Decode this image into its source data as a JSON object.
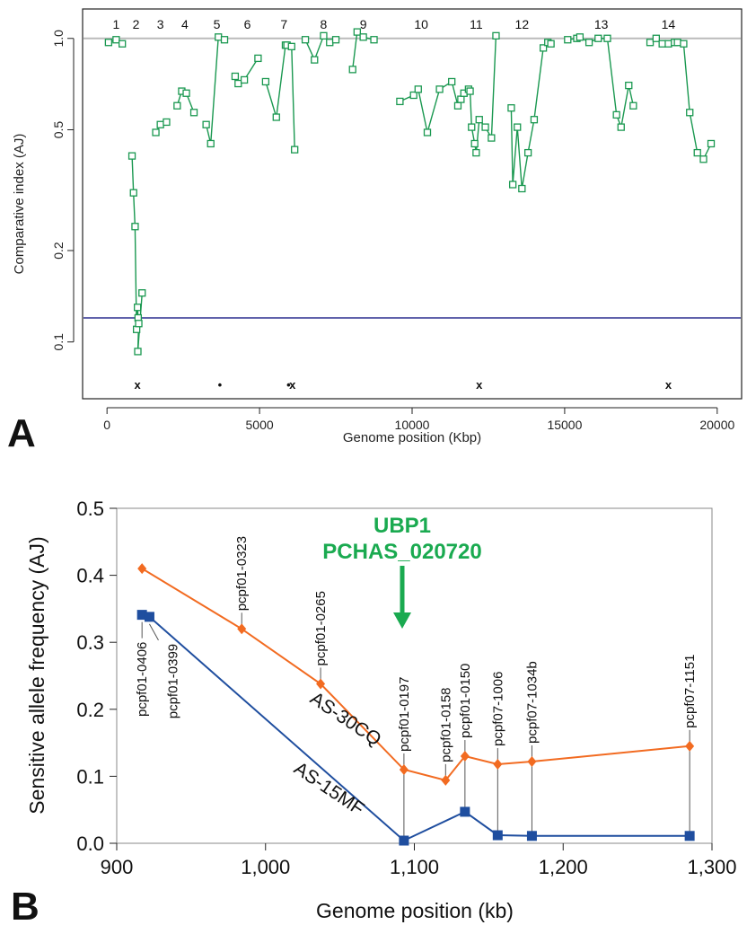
{
  "panel_a": {
    "letter": "A",
    "chart_data": {
      "type": "line",
      "xlabel": "Genome position (Kbp)",
      "ylabel": "Comparative index (AJ)",
      "xlim": [
        -800,
        20800
      ],
      "ylim": [
        0.065,
        1.25
      ],
      "y_scale": "log",
      "x_ticks": [
        0,
        5000,
        10000,
        15000,
        20000
      ],
      "x_tick_labels": [
        "0",
        "5000",
        "10000",
        "15000",
        "20000"
      ],
      "y_ticks": [
        0.1,
        0.2,
        0.5,
        1.0
      ],
      "y_tick_labels": [
        "0.1",
        "0.2",
        "0.5",
        "1.0"
      ],
      "reference_lines": [
        {
          "y": 1.0,
          "color": "#bbbbbb"
        },
        {
          "y": 0.12,
          "color": "#2b2f8f"
        }
      ],
      "chromosomes": [
        {
          "label": "1",
          "x": 300
        },
        {
          "label": "2",
          "x": 950
        },
        {
          "label": "3",
          "x": 1750
        },
        {
          "label": "4",
          "x": 2550
        },
        {
          "label": "5",
          "x": 3600
        },
        {
          "label": "6",
          "x": 4600
        },
        {
          "label": "7",
          "x": 5800
        },
        {
          "label": "8",
          "x": 7100
        },
        {
          "label": "9",
          "x": 8400
        },
        {
          "label": "10",
          "x": 10300
        },
        {
          "label": "11",
          "x": 12100
        },
        {
          "label": "12",
          "x": 13600
        },
        {
          "label": "13",
          "x": 16200
        },
        {
          "label": "14",
          "x": 18400
        }
      ],
      "markers": [
        {
          "symbol": "x",
          "x": 1000
        },
        {
          "symbol": "•",
          "x": 3700
        },
        {
          "symbol": "•",
          "x": 5950
        },
        {
          "symbol": "x",
          "x": 6080
        },
        {
          "symbol": "x",
          "x": 12200
        },
        {
          "symbol": "x",
          "x": 18400
        }
      ],
      "series": [
        {
          "color": "#1a9850",
          "points": [
            [
              50,
              0.97
            ],
            [
              300,
              0.99
            ],
            [
              500,
              0.96
            ]
          ]
        },
        {
          "color": "#1a9850",
          "points": [
            [
              820,
              0.41
            ],
            [
              870,
              0.31
            ],
            [
              920,
              0.24
            ],
            [
              970,
              0.11
            ],
            [
              1000,
              0.13
            ],
            [
              1020,
              0.12
            ],
            [
              1040,
              0.115
            ],
            [
              1010,
              0.093
            ],
            [
              1150,
              0.145
            ]
          ]
        },
        {
          "color": "#1a9850",
          "points": [
            [
              1600,
              0.49
            ],
            [
              1750,
              0.52
            ],
            [
              1950,
              0.53
            ]
          ]
        },
        {
          "color": "#1a9850",
          "points": [
            [
              2300,
              0.6
            ],
            [
              2450,
              0.67
            ],
            [
              2600,
              0.66
            ],
            [
              2850,
              0.57
            ]
          ]
        },
        {
          "color": "#1a9850",
          "points": [
            [
              3250,
              0.52
            ],
            [
              3400,
              0.45
            ],
            [
              3650,
              1.01
            ],
            [
              3850,
              0.99
            ]
          ]
        },
        {
          "color": "#1a9850",
          "points": [
            [
              4200,
              0.75
            ],
            [
              4300,
              0.71
            ],
            [
              4500,
              0.73
            ],
            [
              4950,
              0.86
            ]
          ]
        },
        {
          "color": "#1a9850",
          "points": [
            [
              5200,
              0.72
            ],
            [
              5550,
              0.55
            ],
            [
              5850,
              0.95
            ],
            [
              5900,
              0.95
            ],
            [
              6050,
              0.94
            ],
            [
              6150,
              0.43
            ]
          ]
        },
        {
          "color": "#1a9850",
          "points": [
            [
              6500,
              0.99
            ],
            [
              6800,
              0.85
            ],
            [
              7100,
              1.02
            ],
            [
              7300,
              0.97
            ],
            [
              7500,
              0.99
            ]
          ]
        },
        {
          "color": "#1a9850",
          "points": [
            [
              8050,
              0.79
            ],
            [
              8200,
              1.05
            ],
            [
              8400,
              1.01
            ],
            [
              8750,
              0.99
            ]
          ]
        },
        {
          "color": "#1a9850",
          "points": [
            [
              9600,
              0.62
            ],
            [
              10050,
              0.65
            ],
            [
              10200,
              0.68
            ],
            [
              10500,
              0.49
            ],
            [
              10900,
              0.68
            ],
            [
              11300,
              0.72
            ],
            [
              11500,
              0.6
            ],
            [
              11600,
              0.63
            ],
            [
              11700,
              0.66
            ],
            [
              11850,
              0.68
            ],
            [
              11900,
              0.67
            ],
            [
              11950,
              0.51
            ],
            [
              12050,
              0.45
            ],
            [
              12100,
              0.42
            ],
            [
              12200,
              0.54
            ],
            [
              12400,
              0.51
            ],
            [
              12600,
              0.47
            ],
            [
              12750,
              1.02
            ]
          ]
        },
        {
          "color": "#1a9850",
          "points": [
            [
              13250,
              0.59
            ],
            [
              13300,
              0.33
            ],
            [
              13450,
              0.51
            ],
            [
              13600,
              0.32
            ],
            [
              13800,
              0.42
            ],
            [
              14000,
              0.54
            ],
            [
              14300,
              0.93
            ],
            [
              14450,
              0.97
            ],
            [
              14550,
              0.96
            ]
          ]
        },
        {
          "color": "#1a9850",
          "points": [
            [
              15100,
              0.99
            ],
            [
              15400,
              1.0
            ],
            [
              15500,
              1.01
            ],
            [
              15800,
              0.97
            ],
            [
              16100,
              1.0
            ],
            [
              16400,
              1.0
            ],
            [
              16700,
              0.56
            ],
            [
              16850,
              0.51
            ],
            [
              17100,
              0.7
            ],
            [
              17250,
              0.6
            ]
          ]
        },
        {
          "color": "#1a9850",
          "points": [
            [
              17800,
              0.97
            ],
            [
              18000,
              1.0
            ],
            [
              18200,
              0.96
            ],
            [
              18400,
              0.96
            ],
            [
              18600,
              0.97
            ],
            [
              18700,
              0.97
            ],
            [
              18900,
              0.96
            ],
            [
              19100,
              0.57
            ],
            [
              19350,
              0.42
            ],
            [
              19550,
              0.4
            ],
            [
              19800,
              0.45
            ]
          ]
        }
      ]
    }
  },
  "panel_b": {
    "letter": "B",
    "chart_data": {
      "type": "line",
      "xlabel": "Genome position (kb)",
      "ylabel": "Sensitive allele frequency (AJ)",
      "xlim": [
        900,
        1300
      ],
      "ylim": [
        0,
        0.5
      ],
      "x_ticks": [
        900,
        1000,
        1100,
        1200,
        1300
      ],
      "x_tick_labels": [
        "900",
        "1,000",
        "1,100",
        "1,200",
        "1,300"
      ],
      "y_ticks": [
        0.0,
        0.1,
        0.2,
        0.3,
        0.4,
        0.5
      ],
      "y_tick_labels": [
        "0.0",
        "0.1",
        "0.2",
        "0.3",
        "0.4",
        "0.5"
      ],
      "annotation": {
        "line1": "UBP1",
        "line2": "PCHAS_020720",
        "x": 1093,
        "color": "#1aaa50"
      },
      "series": [
        {
          "name": "AS-30CQ",
          "color": "#f26b21",
          "marker": "diamond",
          "x": [
            917,
            984,
            1037,
            1093,
            1121,
            1134,
            1156,
            1179,
            1285
          ],
          "values": [
            0.41,
            0.32,
            0.238,
            0.11,
            0.094,
            0.13,
            0.118,
            0.122,
            0.145
          ]
        },
        {
          "name": "AS-15MF",
          "color": "#1f4e9f",
          "marker": "square",
          "x": [
            917,
            922,
            1093,
            1134,
            1156,
            1179,
            1285
          ],
          "values": [
            0.341,
            0.338,
            0.004,
            0.047,
            0.012,
            0.011,
            0.011
          ]
        }
      ],
      "marker_labels": [
        {
          "label": "pcpf01-0406",
          "x": 917
        },
        {
          "label": "pcpf01-0399",
          "x": 922
        },
        {
          "label": "pcpf01-0323",
          "x": 984
        },
        {
          "label": "pcpf01-0265",
          "x": 1037
        },
        {
          "label": "pcpf01-0197",
          "x": 1093
        },
        {
          "label": "pcpf01-0158",
          "x": 1121
        },
        {
          "label": "pcpf01-0150",
          "x": 1134
        },
        {
          "label": "pcpf07-1006",
          "x": 1156
        },
        {
          "label": "pcpf07-1034b",
          "x": 1179
        },
        {
          "label": "pcpf07-1151",
          "x": 1285
        }
      ]
    }
  }
}
